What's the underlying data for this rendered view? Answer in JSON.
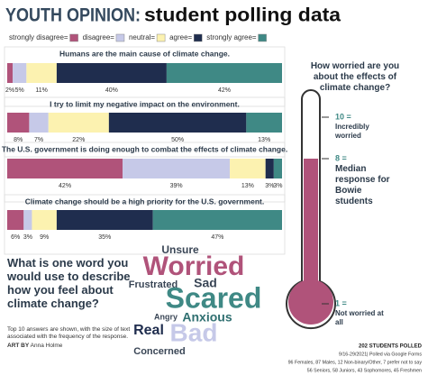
{
  "header": {
    "title_lead": "YOUTH OPINION:",
    "title_rest": "student polling data"
  },
  "chart_data": [
    {
      "type": "stacked-bar",
      "categories": [
        "Humans are the main cause of climate change.",
        "I try to limit my negative impact on the environment.",
        "The U.S. government is doing enough to combat the effects of climate change.",
        "Climate change should be a high priority for the U.S. government."
      ],
      "xlim": [
        0,
        100
      ],
      "series": [
        {
          "name": "strongly disagree=",
          "color": "#b0537a",
          "values": [
            2,
            8,
            42,
            6
          ],
          "value_labels": [
            "2%",
            "8%",
            "42%",
            "6%"
          ]
        },
        {
          "name": "disagree=",
          "color": "#c6c9e8",
          "values": [
            5,
            7,
            39,
            3
          ],
          "value_labels": [
            "5%",
            "7%",
            "39%",
            "3%"
          ]
        },
        {
          "name": "neutral=",
          "color": "#fcf2b0",
          "values": [
            11,
            22,
            13,
            9
          ],
          "value_labels": [
            "11%",
            "22%",
            "13%",
            "9%"
          ]
        },
        {
          "name": "agree=",
          "color": "#1f2d4e",
          "values": [
            40,
            50,
            3,
            35
          ],
          "value_labels": [
            "40%",
            "50%",
            "3%",
            "35%"
          ]
        },
        {
          "name": "strongly agree=",
          "color": "#3f8985",
          "values": [
            42,
            13,
            3,
            47
          ],
          "value_labels": [
            "42%",
            "13%",
            "3%",
            "47%"
          ]
        }
      ]
    },
    {
      "type": "thermometer",
      "title": "How worried are you about the effects of climate change?",
      "ylim": [
        1,
        10
      ],
      "yticks": [
        {
          "value": 10,
          "label": "10 ="
        },
        {
          "value": 8,
          "label": "8 ="
        },
        {
          "value": 1,
          "label": "1 ="
        }
      ],
      "tick_descriptions": [
        "Incredibly worried",
        "Median response for Bowie students",
        "Not worried at all"
      ],
      "value": 8,
      "color": "#b0537a"
    }
  ],
  "word_cloud": {
    "question": "What is one word you would use to describe how you feel about climate change?",
    "note": "Top 10 answers are shown, with the size of text associated with the frequency of the response.",
    "credit_label": "ART BY",
    "credit_name": "Anna Holme",
    "words": [
      {
        "text": "Unsure",
        "color": "#3a4656"
      },
      {
        "text": "Worried",
        "color": "#b0537a"
      },
      {
        "text": "Sad",
        "color": "#3a4656"
      },
      {
        "text": "Frustrated",
        "color": "#3a4656"
      },
      {
        "text": "Scared",
        "color": "#3f8985"
      },
      {
        "text": "Angry",
        "color": "#3a4656"
      },
      {
        "text": "Anxious",
        "color": "#2f6f70"
      },
      {
        "text": "Real",
        "color": "#1f2d4e"
      },
      {
        "text": "Bad",
        "color": "#c6c9e8"
      },
      {
        "text": "Concerned",
        "color": "#3a4656"
      }
    ]
  },
  "footer": {
    "count": "202 STUDENTS POLLED",
    "dates": "9/16-29/2021| Polled via Google Forms",
    "gender": "96 Females, 87 Males, 12 Non-binary/Other, 7 prefer not to say",
    "grades": "56 Seniors, 58 Juniors, 43 Sophomores, 45 Freshmen"
  }
}
